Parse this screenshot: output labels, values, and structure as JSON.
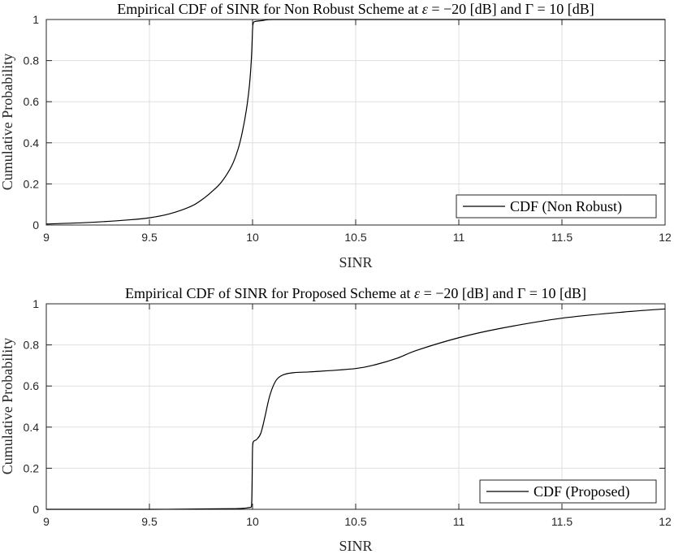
{
  "chart_data": [
    {
      "type": "line",
      "title_parts": [
        "Empirical CDF of SINR for Non Robust Scheme at ",
        "ε",
        " = −20 [dB] and Γ = 10 [dB]"
      ],
      "xlabel": "SINR",
      "ylabel": "Cumulative Probability",
      "xlim": [
        9,
        12
      ],
      "ylim": [
        0,
        1
      ],
      "xticks": [
        "9",
        "9.5",
        "10",
        "10.5",
        "11",
        "11.5",
        "12"
      ],
      "yticks": [
        "0",
        "0.2",
        "0.4",
        "0.6",
        "0.8",
        "1"
      ],
      "grid": true,
      "legend_position": "bottom-right",
      "series": [
        {
          "name": "CDF (Non Robust)",
          "color": "#000000",
          "x": [
            9.0,
            9.2,
            9.4,
            9.5,
            9.6,
            9.7,
            9.75,
            9.8,
            9.85,
            9.9,
            9.93,
            9.95,
            9.97,
            9.985,
            9.995,
            10.0,
            10.003,
            10.01,
            10.05,
            10.1,
            12.0
          ],
          "y": [
            0.005,
            0.012,
            0.025,
            0.035,
            0.055,
            0.09,
            0.12,
            0.16,
            0.21,
            0.29,
            0.37,
            0.45,
            0.56,
            0.68,
            0.82,
            0.95,
            0.98,
            0.99,
            0.995,
            1.0,
            1.0
          ]
        }
      ]
    },
    {
      "type": "line",
      "title_parts": [
        "Empirical CDF of SINR for Proposed Scheme at ",
        "ε",
        " = −20 [dB] and Γ = 10 [dB]"
      ],
      "xlabel": "SINR",
      "ylabel": "Cumulative Probability",
      "xlim": [
        9,
        12
      ],
      "ylim": [
        0,
        1
      ],
      "xticks": [
        "9",
        "9.5",
        "10",
        "10.5",
        "11",
        "11.5",
        "12"
      ],
      "yticks": [
        "0",
        "0.2",
        "0.4",
        "0.6",
        "0.8",
        "1"
      ],
      "grid": true,
      "legend_position": "bottom-right",
      "series": [
        {
          "name": "CDF (Proposed)",
          "color": "#000000",
          "x": [
            9.0,
            9.5,
            9.9,
            9.98,
            9.995,
            10.0,
            10.005,
            10.02,
            10.04,
            10.06,
            10.08,
            10.1,
            10.12,
            10.15,
            10.2,
            10.3,
            10.5,
            10.6,
            10.7,
            10.8,
            11.0,
            11.2,
            11.5,
            11.8,
            12.0
          ],
          "y": [
            0.0,
            0.0,
            0.003,
            0.008,
            0.015,
            0.3,
            0.33,
            0.34,
            0.37,
            0.45,
            0.54,
            0.6,
            0.635,
            0.655,
            0.665,
            0.67,
            0.685,
            0.705,
            0.735,
            0.775,
            0.835,
            0.88,
            0.93,
            0.96,
            0.975
          ]
        }
      ]
    }
  ]
}
